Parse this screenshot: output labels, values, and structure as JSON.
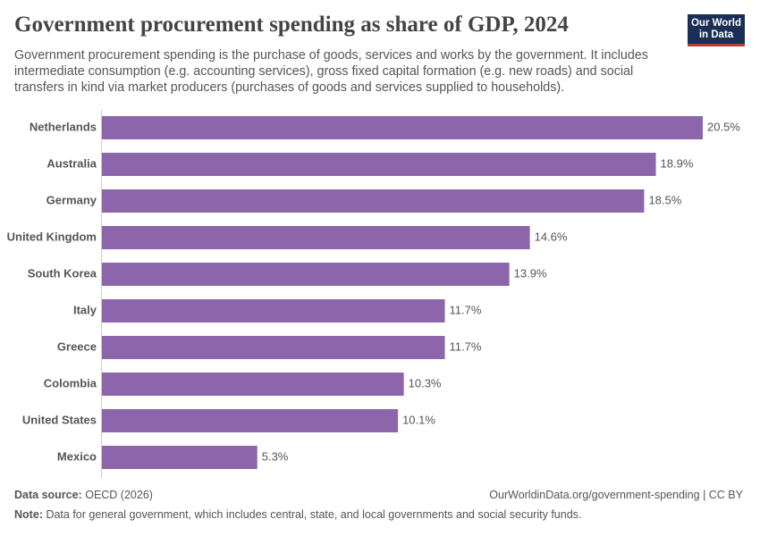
{
  "chart_data": {
    "type": "bar",
    "orientation": "horizontal",
    "title": "Government procurement spending as share of GDP, 2024",
    "subtitle": "Government procurement spending is the purchase of goods, services and works by the government. It includes intermediate consumption (e.g. accounting services), gross fixed capital formation (e.g. new roads) and social transfers in kind via market producers (purchases of goods and services supplied to households).",
    "categories": [
      "Netherlands",
      "Australia",
      "Germany",
      "United Kingdom",
      "South Korea",
      "Italy",
      "Greece",
      "Colombia",
      "United States",
      "Mexico"
    ],
    "values": [
      20.5,
      18.9,
      18.5,
      14.6,
      13.9,
      11.7,
      11.7,
      10.3,
      10.1,
      5.3
    ],
    "value_labels": [
      "20.5%",
      "18.9%",
      "18.5%",
      "14.6%",
      "13.9%",
      "11.7%",
      "11.7%",
      "10.3%",
      "10.1%",
      "5.3%"
    ],
    "color": "#8c65aa",
    "source_label": "Data source:",
    "source": "OECD (2026)",
    "url": "OurWorldinData.org/government-spending | CC BY",
    "note_label": "Note:",
    "note": "Data for general government, which includes central, state, and local governments and social security funds."
  },
  "logo": {
    "lines": [
      "Our World",
      "in Data"
    ]
  }
}
